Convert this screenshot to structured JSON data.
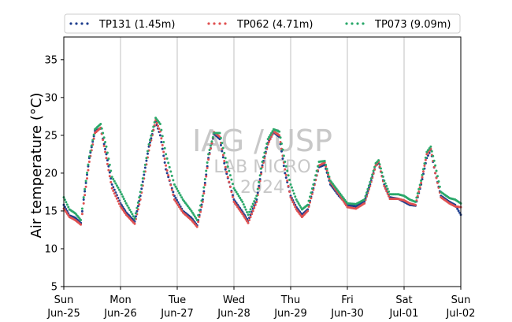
{
  "chart_data": {
    "type": "scatter",
    "ylabel": "Air temperature (°C)",
    "ylim": [
      5,
      38
    ],
    "xlim": [
      0,
      7
    ],
    "y_ticks": [
      5,
      10,
      15,
      20,
      25,
      30,
      35
    ],
    "x_ticks": [
      {
        "x": 0,
        "day": "Sun",
        "date": "Jun-25"
      },
      {
        "x": 1,
        "day": "Mon",
        "date": "Jun-26"
      },
      {
        "x": 2,
        "day": "Tue",
        "date": "Jun-27"
      },
      {
        "x": 3,
        "day": "Wed",
        "date": "Jun-28"
      },
      {
        "x": 4,
        "day": "Thu",
        "date": "Jun-29"
      },
      {
        "x": 5,
        "day": "Fri",
        "date": "Jun-30"
      },
      {
        "x": 6,
        "day": "Sat",
        "date": "Jul-01"
      },
      {
        "x": 7,
        "day": "Sun",
        "date": "Jul-02"
      }
    ],
    "grid": "vertical",
    "legend_position": "top",
    "watermark": [
      "IAG / USP",
      "LAB MICRO",
      "2024"
    ],
    "series": [
      {
        "name": "TP131 (1.45m)",
        "color": "#1f3f8f",
        "points": [
          [
            0,
            15.8
          ],
          [
            0.1,
            14.4
          ],
          [
            0.2,
            14.1
          ],
          [
            0.3,
            13.4
          ],
          [
            0.35,
            16.5
          ],
          [
            0.45,
            22.0
          ],
          [
            0.55,
            25.6
          ],
          [
            0.65,
            25.9
          ],
          [
            0.75,
            22.5
          ],
          [
            0.85,
            18.5
          ],
          [
            1.0,
            16.0
          ],
          [
            1.1,
            14.8
          ],
          [
            1.25,
            13.6
          ],
          [
            1.35,
            17.0
          ],
          [
            1.5,
            23.5
          ],
          [
            1.62,
            26.8
          ],
          [
            1.7,
            25.0
          ],
          [
            1.8,
            20.5
          ],
          [
            1.95,
            17.0
          ],
          [
            2.1,
            15.0
          ],
          [
            2.25,
            14.1
          ],
          [
            2.35,
            13.1
          ],
          [
            2.45,
            16.5
          ],
          [
            2.55,
            22.0
          ],
          [
            2.65,
            25.2
          ],
          [
            2.75,
            24.5
          ],
          [
            2.85,
            20.5
          ],
          [
            3.0,
            16.5
          ],
          [
            3.15,
            14.9
          ],
          [
            3.25,
            13.7
          ],
          [
            3.4,
            16.5
          ],
          [
            3.5,
            21.0
          ],
          [
            3.6,
            24.0
          ],
          [
            3.7,
            25.4
          ],
          [
            3.8,
            24.8
          ],
          [
            3.9,
            20.0
          ],
          [
            4.0,
            17.0
          ],
          [
            4.1,
            15.5
          ],
          [
            4.2,
            14.5
          ],
          [
            4.3,
            15.2
          ],
          [
            4.4,
            18.0
          ],
          [
            4.5,
            20.8
          ],
          [
            4.6,
            21.1
          ],
          [
            4.7,
            18.5
          ],
          [
            4.85,
            17.0
          ],
          [
            5.0,
            15.8
          ],
          [
            5.15,
            15.6
          ],
          [
            5.3,
            16.2
          ],
          [
            5.4,
            18.5
          ],
          [
            5.5,
            21.0
          ],
          [
            5.55,
            21.3
          ],
          [
            5.65,
            18.5
          ],
          [
            5.75,
            16.8
          ],
          [
            5.9,
            16.6
          ],
          [
            6.0,
            16.2
          ],
          [
            6.1,
            15.8
          ],
          [
            6.2,
            15.7
          ],
          [
            6.3,
            18.5
          ],
          [
            6.4,
            22.0
          ],
          [
            6.47,
            23.0
          ],
          [
            6.55,
            20.0
          ],
          [
            6.65,
            17.0
          ],
          [
            6.8,
            16.2
          ],
          [
            6.9,
            15.8
          ],
          [
            7.0,
            14.5
          ]
        ]
      },
      {
        "name": "TP062 (4.71m)",
        "color": "#e05050",
        "points": [
          [
            0,
            15.3
          ],
          [
            0.1,
            14.2
          ],
          [
            0.2,
            13.8
          ],
          [
            0.3,
            13.2
          ],
          [
            0.35,
            16.0
          ],
          [
            0.45,
            21.5
          ],
          [
            0.55,
            25.3
          ],
          [
            0.65,
            26.0
          ],
          [
            0.75,
            22.0
          ],
          [
            0.85,
            18.0
          ],
          [
            1.0,
            15.6
          ],
          [
            1.1,
            14.5
          ],
          [
            1.25,
            13.3
          ],
          [
            1.35,
            16.5
          ],
          [
            1.5,
            23.0
          ],
          [
            1.62,
            27.0
          ],
          [
            1.7,
            25.5
          ],
          [
            1.8,
            21.0
          ],
          [
            1.95,
            16.5
          ],
          [
            2.1,
            14.8
          ],
          [
            2.25,
            13.8
          ],
          [
            2.35,
            12.9
          ],
          [
            2.45,
            16.2
          ],
          [
            2.55,
            21.8
          ],
          [
            2.65,
            25.4
          ],
          [
            2.75,
            24.8
          ],
          [
            2.85,
            20.8
          ],
          [
            3.0,
            16.2
          ],
          [
            3.15,
            14.6
          ],
          [
            3.25,
            13.4
          ],
          [
            3.4,
            16.2
          ],
          [
            3.5,
            20.8
          ],
          [
            3.6,
            23.8
          ],
          [
            3.7,
            25.5
          ],
          [
            3.8,
            25.0
          ],
          [
            3.9,
            20.5
          ],
          [
            4.0,
            16.8
          ],
          [
            4.1,
            15.2
          ],
          [
            4.2,
            14.2
          ],
          [
            4.3,
            15.0
          ],
          [
            4.4,
            17.8
          ],
          [
            4.5,
            21.0
          ],
          [
            4.6,
            21.4
          ],
          [
            4.7,
            18.8
          ],
          [
            4.85,
            17.2
          ],
          [
            5.0,
            15.5
          ],
          [
            5.15,
            15.3
          ],
          [
            5.3,
            16.0
          ],
          [
            5.4,
            18.3
          ],
          [
            5.5,
            21.0
          ],
          [
            5.55,
            21.5
          ],
          [
            5.65,
            18.3
          ],
          [
            5.75,
            16.6
          ],
          [
            5.9,
            16.6
          ],
          [
            6.0,
            16.4
          ],
          [
            6.1,
            16.0
          ],
          [
            6.2,
            15.8
          ],
          [
            6.3,
            18.7
          ],
          [
            6.4,
            22.5
          ],
          [
            6.47,
            23.2
          ],
          [
            6.55,
            20.0
          ],
          [
            6.65,
            16.8
          ],
          [
            6.8,
            16.0
          ],
          [
            6.9,
            15.6
          ],
          [
            7.0,
            15.5
          ]
        ]
      },
      {
        "name": "TP073 (9.09m)",
        "color": "#2aa86a",
        "points": [
          [
            0,
            16.8
          ],
          [
            0.1,
            15.2
          ],
          [
            0.2,
            14.7
          ],
          [
            0.3,
            13.8
          ],
          [
            0.35,
            16.8
          ],
          [
            0.45,
            22.2
          ],
          [
            0.55,
            25.8
          ],
          [
            0.65,
            26.5
          ],
          [
            0.75,
            23.5
          ],
          [
            0.85,
            19.5
          ],
          [
            1.0,
            17.5
          ],
          [
            1.1,
            16.0
          ],
          [
            1.25,
            14.0
          ],
          [
            1.35,
            17.5
          ],
          [
            1.5,
            23.8
          ],
          [
            1.62,
            27.3
          ],
          [
            1.7,
            26.5
          ],
          [
            1.8,
            22.5
          ],
          [
            1.95,
            18.5
          ],
          [
            2.1,
            16.5
          ],
          [
            2.25,
            15.0
          ],
          [
            2.35,
            13.8
          ],
          [
            2.45,
            17.0
          ],
          [
            2.55,
            22.5
          ],
          [
            2.65,
            25.3
          ],
          [
            2.75,
            25.3
          ],
          [
            2.85,
            22.0
          ],
          [
            3.0,
            18.0
          ],
          [
            3.15,
            16.2
          ],
          [
            3.25,
            14.5
          ],
          [
            3.4,
            17.0
          ],
          [
            3.5,
            21.5
          ],
          [
            3.6,
            24.5
          ],
          [
            3.7,
            25.8
          ],
          [
            3.8,
            25.5
          ],
          [
            3.9,
            21.5
          ],
          [
            4.0,
            18.5
          ],
          [
            4.1,
            16.5
          ],
          [
            4.2,
            15.2
          ],
          [
            4.3,
            15.8
          ],
          [
            4.4,
            18.5
          ],
          [
            4.5,
            21.5
          ],
          [
            4.6,
            21.6
          ],
          [
            4.7,
            19.0
          ],
          [
            4.85,
            17.5
          ],
          [
            5.0,
            16.0
          ],
          [
            5.15,
            15.9
          ],
          [
            5.3,
            16.5
          ],
          [
            5.4,
            18.8
          ],
          [
            5.5,
            21.3
          ],
          [
            5.55,
            21.7
          ],
          [
            5.65,
            19.0
          ],
          [
            5.75,
            17.2
          ],
          [
            5.9,
            17.2
          ],
          [
            6.0,
            17.0
          ],
          [
            6.1,
            16.5
          ],
          [
            6.2,
            16.2
          ],
          [
            6.3,
            19.0
          ],
          [
            6.4,
            22.8
          ],
          [
            6.47,
            23.5
          ],
          [
            6.55,
            21.0
          ],
          [
            6.65,
            17.5
          ],
          [
            6.8,
            16.7
          ],
          [
            6.9,
            16.5
          ],
          [
            7.0,
            16.0
          ]
        ]
      }
    ]
  }
}
